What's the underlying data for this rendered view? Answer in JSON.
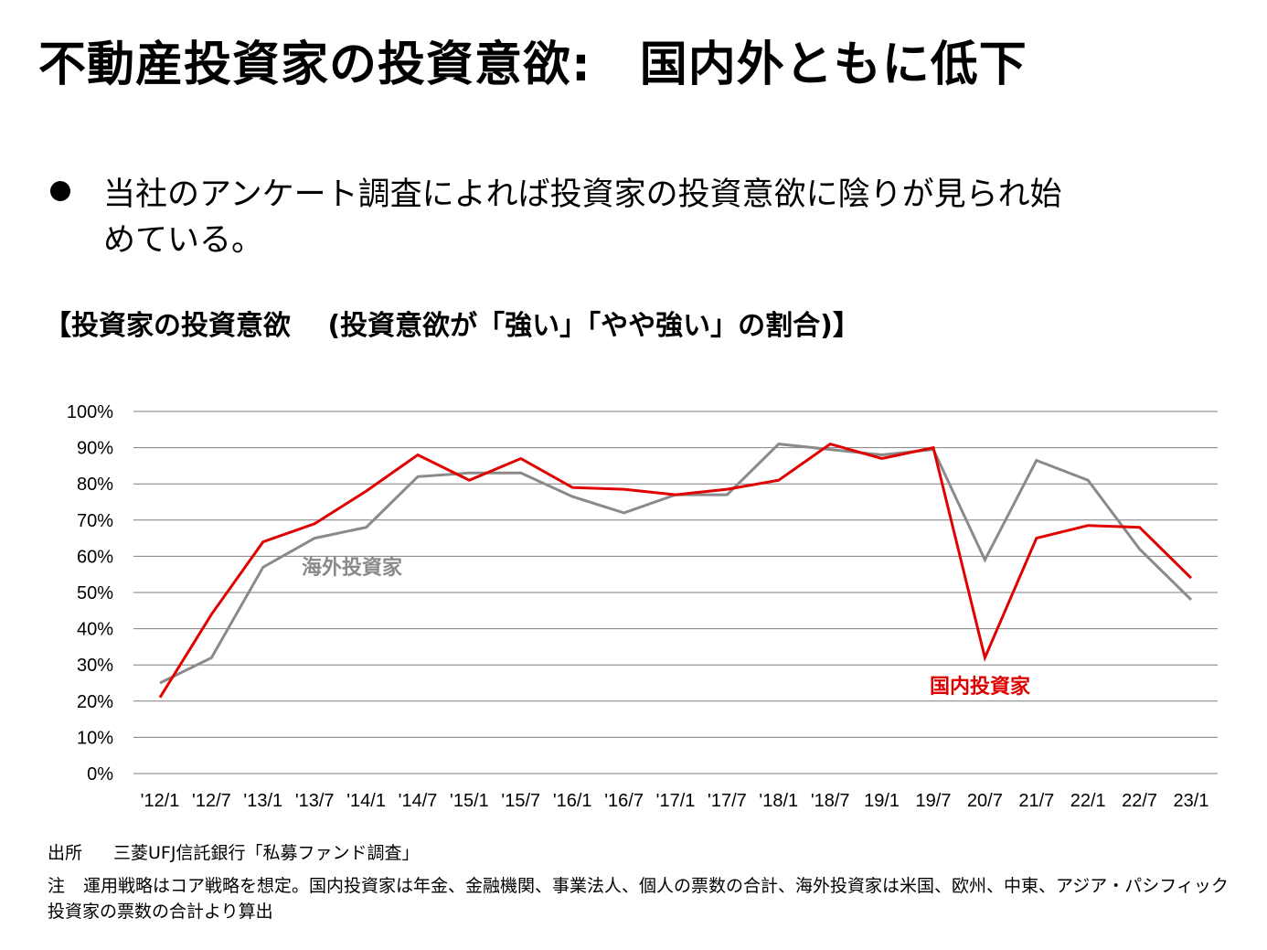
{
  "title": "不動産投資家の投資意欲:　国内外ともに低下",
  "bullet": {
    "text": "当社のアンケート調査によれば投資家の投資意欲に陰りが見られ始めている。"
  },
  "chart_heading": "【投資家の投資意欲 　(投資意欲が「強い」「やや強い」の割合)】",
  "colors": {
    "domestic": "#e00000",
    "overseas": "#8a8a8a",
    "grid": "#7f7f7f"
  },
  "chart_data": {
    "type": "line",
    "title": "投資家の投資意欲 (投資意欲が「強い」「やや強い」の割合)",
    "xlabel": "",
    "ylabel": "",
    "ylim": [
      0,
      100
    ],
    "y_ticks": [
      "0%",
      "10%",
      "20%",
      "30%",
      "40%",
      "50%",
      "60%",
      "70%",
      "80%",
      "90%",
      "100%"
    ],
    "categories": [
      "'12/1",
      "'12/7",
      "'13/1",
      "'13/7",
      "'14/1",
      "'14/7",
      "'15/1",
      "'15/7",
      "'16/1",
      "'16/7",
      "'17/1",
      "'17/7",
      "'18/1",
      "'18/7",
      "19/1",
      "19/7",
      "20/7",
      "21/7",
      "22/1",
      "22/7",
      "23/1"
    ],
    "series": [
      {
        "name": "国内投資家",
        "values": [
          21,
          44,
          64,
          69,
          78,
          88,
          81,
          87,
          79,
          78.5,
          77,
          78.5,
          81,
          91,
          87,
          90,
          32,
          65,
          68.5,
          68,
          54
        ]
      },
      {
        "name": "海外投資家",
        "values": [
          25,
          32,
          57,
          65,
          68,
          82,
          83,
          83,
          76.5,
          72,
          77,
          77,
          91,
          89.5,
          88,
          89.5,
          59,
          86.5,
          81,
          62,
          48
        ]
      }
    ]
  },
  "source": {
    "label": "出所",
    "text": "三菱UFJ信託銀行「私募ファンド調査」"
  },
  "note": {
    "label": "注",
    "text": "運用戦略はコア戦略を想定。国内投資家は年金、金融機関、事業法人、個人の票数の合計、海外投資家は米国、欧州、中東、アジア・パシフィック投資家の票数の合計より算出"
  }
}
